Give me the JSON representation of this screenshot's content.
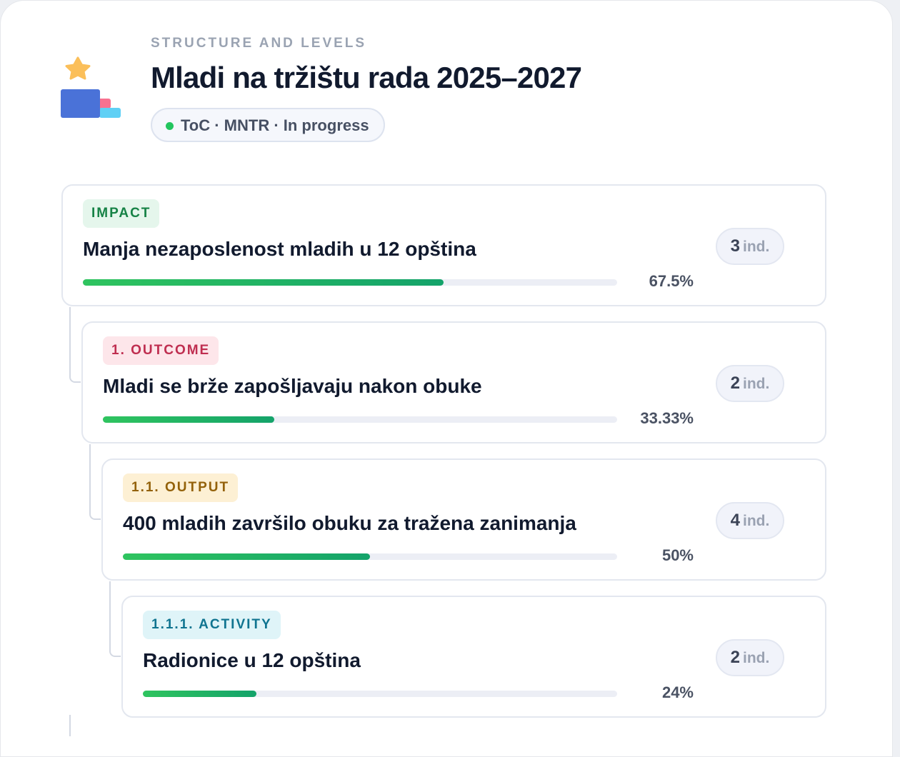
{
  "header": {
    "eyebrow": "STRUCTURE AND LEVELS",
    "title": "Mladi na tržištu rada 2025–2027",
    "status": "ToC · MNTR · In progress"
  },
  "items": [
    {
      "tag": "IMPACT",
      "title": "Manja nezaposlenost mladih u 12 opština",
      "progress": 67.5,
      "progress_label": "67.5%",
      "count": "3",
      "unit": "ind."
    },
    {
      "tag": "1. OUTCOME",
      "title": "Mladi se brže zapošljavaju nakon obuke",
      "progress": 33.33,
      "progress_label": "33.33%",
      "count": "2",
      "unit": "ind."
    },
    {
      "tag": "1.1. OUTPUT",
      "title": "400 mladih završilo obuku za tražena zanimanja",
      "progress": 50,
      "progress_label": "50%",
      "count": "4",
      "unit": "ind."
    },
    {
      "tag": "1.1.1. ACTIVITY",
      "title": "Radionice u 12 opština",
      "progress": 24,
      "progress_label": "24%",
      "count": "2",
      "unit": "ind."
    }
  ]
}
